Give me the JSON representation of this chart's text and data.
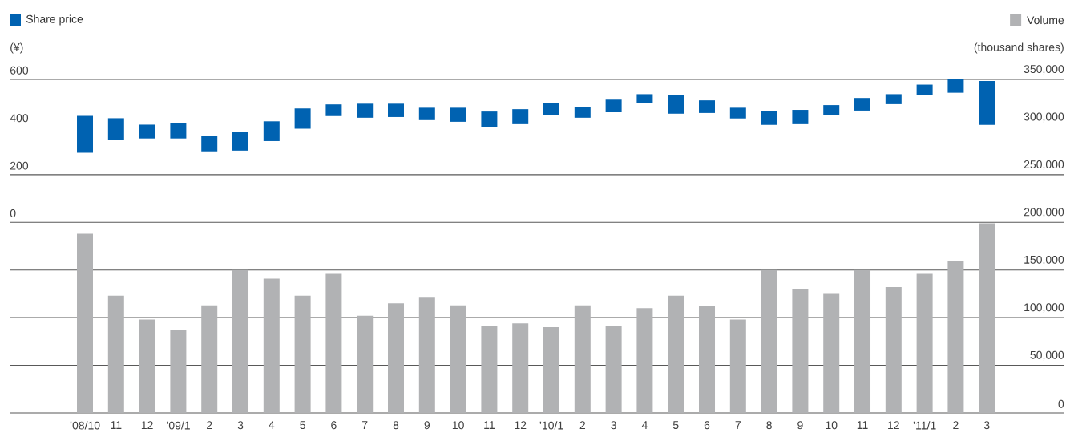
{
  "chart_data": {
    "type": "bar",
    "categories": [
      "’08/10",
      "11",
      "12",
      "’09/1",
      "2",
      "3",
      "4",
      "5",
      "6",
      "7",
      "8",
      "9",
      "10",
      "11",
      "12",
      "’10/1",
      "2",
      "3",
      "4",
      "5",
      "6",
      "7",
      "8",
      "9",
      "10",
      "11",
      "12",
      "’11/1",
      "2",
      "3"
    ],
    "series": [
      {
        "name": "Share price",
        "color": "#0062b1",
        "base": [
          292,
          345,
          352,
          352,
          298,
          301,
          341,
          393,
          446,
          439,
          442,
          429,
          422,
          400,
          412,
          449,
          439,
          462,
          499,
          456,
          459,
          436,
          409,
          412,
          449,
          469,
          496,
          534,
          544,
          409
        ],
        "values": [
          155,
          92,
          58,
          65,
          65,
          79,
          83,
          85,
          49,
          59,
          56,
          52,
          59,
          65,
          63,
          52,
          46,
          53,
          39,
          79,
          53,
          45,
          59,
          60,
          43,
          53,
          42,
          44,
          56,
          184
        ]
      },
      {
        "name": "Volume",
        "color": "#b1b2b4",
        "axis": "y2",
        "values": [
          188000,
          123000,
          98000,
          87000,
          113000,
          150000,
          141000,
          123000,
          146000,
          102000,
          115000,
          121000,
          113000,
          91000,
          94000,
          90000,
          113000,
          91000,
          110000,
          123000,
          112000,
          98000,
          150000,
          130000,
          125000,
          150000,
          132000,
          146000,
          159000,
          199000
        ]
      }
    ],
    "ylabel": "(¥)",
    "y2label": "(thousand shares)",
    "ylim": [
      -800,
      600
    ],
    "yticks": [
      0,
      200,
      400,
      600
    ],
    "y2lim": [
      0,
      350000
    ],
    "y2ticks": [
      0,
      {
        "value": 50000,
        "label": "50,000"
      },
      {
        "value": 100000,
        "label": "100,000"
      },
      {
        "value": 150000,
        "label": "150,000"
      },
      {
        "value": 200000,
        "label": "200,000"
      },
      {
        "value": 250000,
        "label": "250,000"
      },
      {
        "value": 300000,
        "label": "300,000"
      },
      {
        "value": 350000,
        "label": "350,000"
      }
    ],
    "grid": "y",
    "legend": "top"
  }
}
